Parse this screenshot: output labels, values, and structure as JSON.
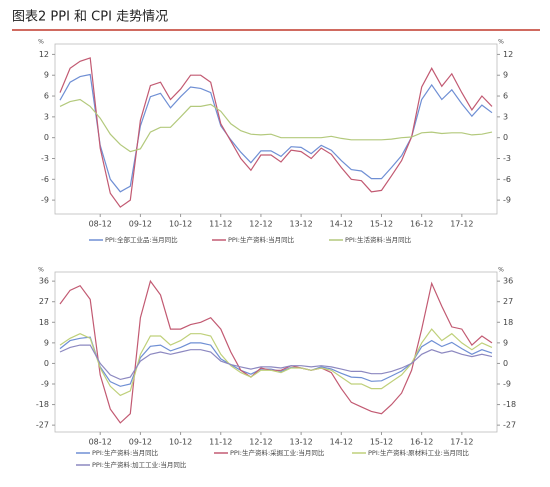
{
  "header": {
    "title": "图表2  PPI 和 CPI 走势情况"
  },
  "chart_data": [
    {
      "type": "line",
      "unit": "%",
      "categories": [
        null,
        null,
        null,
        null,
        "08-12",
        null,
        null,
        null,
        "09-12",
        null,
        null,
        null,
        "10-12",
        null,
        null,
        null,
        "11-12",
        null,
        null,
        null,
        "12-12",
        null,
        null,
        null,
        "13-12",
        null,
        null,
        null,
        "14-12",
        null,
        null,
        null,
        "15-12",
        null,
        null,
        null,
        "16-12",
        null,
        null,
        null,
        "17-12",
        null,
        null,
        null
      ],
      "ylim": [
        -11,
        13.5
      ],
      "yticks": [
        -9,
        -6,
        -3,
        0,
        3,
        6,
        9,
        12
      ],
      "series": [
        {
          "name": "PPI:全部工业品:当月同比",
          "color": "#6f8fd4",
          "values": [
            5.4,
            8.0,
            8.8,
            9.1,
            -1.1,
            -6.0,
            -7.8,
            -7.0,
            1.7,
            5.9,
            6.4,
            4.3,
            5.9,
            7.3,
            7.1,
            6.5,
            1.7,
            -0.3,
            -2.1,
            -3.6,
            -1.9,
            -1.9,
            -2.7,
            -1.3,
            -1.4,
            -2.3,
            -1.1,
            -1.8,
            -3.3,
            -4.6,
            -4.8,
            -5.9,
            -5.9,
            -4.3,
            -2.6,
            0.1,
            5.5,
            7.6,
            5.5,
            6.9,
            4.9,
            3.1,
            4.7,
            3.6
          ]
        },
        {
          "name": "PPI:生产资料:当月同比",
          "color": "#c25a72",
          "values": [
            6.5,
            10,
            11,
            11.5,
            -1.5,
            -8,
            -10,
            -9,
            2.5,
            7.5,
            8,
            5.5,
            7,
            9,
            9,
            8,
            2,
            -0.5,
            -3,
            -4.7,
            -2.5,
            -2.5,
            -3.5,
            -1.8,
            -2,
            -3,
            -1.5,
            -2.4,
            -4.3,
            -6,
            -6.2,
            -7.8,
            -7.6,
            -5.5,
            -3.3,
            0.1,
            7.3,
            10,
            7.4,
            9.2,
            6.5,
            4,
            6,
            4.5
          ]
        },
        {
          "name": "PPI:生活资料:当月同比",
          "color": "#b3c97c",
          "values": [
            4.5,
            5.2,
            5.5,
            4.5,
            2.8,
            0.5,
            -1,
            -2,
            -1.6,
            0.8,
            1.5,
            1.5,
            3,
            4.5,
            4.5,
            4.8,
            3.8,
            2,
            1,
            0.5,
            0.4,
            0.5,
            0,
            0,
            0,
            0,
            0,
            0.2,
            -0.1,
            -0.3,
            -0.3,
            -0.3,
            -0.3,
            -0.2,
            0,
            0.1,
            0.7,
            0.8,
            0.6,
            0.7,
            0.7,
            0.4,
            0.5,
            0.8
          ]
        }
      ]
    },
    {
      "type": "line",
      "unit": "%",
      "categories": [
        null,
        null,
        null,
        null,
        "08-12",
        null,
        null,
        null,
        "09-12",
        null,
        null,
        null,
        "10-12",
        null,
        null,
        null,
        "11-12",
        null,
        null,
        null,
        "12-12",
        null,
        null,
        null,
        "13-12",
        null,
        null,
        null,
        "14-12",
        null,
        null,
        null,
        "15-12",
        null,
        null,
        null,
        "16-12",
        null,
        null,
        null,
        "17-12",
        null,
        null,
        null
      ],
      "ylim": [
        -30,
        40
      ],
      "yticks": [
        -27,
        -18,
        -9,
        0,
        9,
        18,
        27,
        36
      ],
      "series": [
        {
          "name": "PPI:生产资料:当月同比",
          "color": "#6f8fd4",
          "values": [
            6.5,
            10,
            11,
            11.5,
            -1.5,
            -8,
            -10,
            -9,
            2.5,
            7.5,
            8,
            5.5,
            7,
            9,
            9,
            8,
            2,
            -0.5,
            -3,
            -4.7,
            -2.5,
            -2.5,
            -3.5,
            -1.8,
            -2,
            -3,
            -1.5,
            -2.4,
            -4.3,
            -6,
            -6.2,
            -7.8,
            -7.6,
            -5.5,
            -3.3,
            0.1,
            7.3,
            10,
            7.4,
            9.2,
            6.5,
            4,
            6,
            4.5
          ]
        },
        {
          "name": "PPI:生产资料:采掘工业:当月同比",
          "color": "#c25a72",
          "values": [
            26,
            32,
            34,
            28,
            -5,
            -20,
            -26,
            -22,
            20,
            36,
            30,
            15,
            15,
            17,
            18,
            20,
            15,
            5,
            -3,
            -6,
            -2,
            -3,
            -3,
            -1,
            -2,
            -3,
            -2,
            -4,
            -11,
            -17,
            -19,
            -21,
            -22,
            -18,
            -13,
            -3,
            15,
            35,
            25,
            16,
            15,
            8,
            12,
            9
          ]
        },
        {
          "name": "PPI:生产资料:原材料工业:当月同比",
          "color": "#bfd07a",
          "values": [
            8,
            11,
            13,
            11,
            -2,
            -10,
            -14,
            -12,
            4,
            12,
            12,
            8,
            10,
            13,
            13,
            12,
            4,
            -1,
            -4,
            -6,
            -3,
            -3,
            -4,
            -2,
            -2,
            -3,
            -2,
            -3,
            -6,
            -9,
            -9,
            -11,
            -11,
            -8,
            -5,
            0,
            9,
            15,
            10,
            13,
            9,
            6,
            9,
            7
          ]
        },
        {
          "name": "PPI:生产资料:加工工业:当月同比",
          "color": "#8c88c0",
          "values": [
            5,
            7,
            8,
            8,
            0,
            -5,
            -7,
            -6,
            1,
            4,
            5,
            4,
            5,
            6,
            6,
            5,
            1,
            -0.5,
            -1.5,
            -2.5,
            -1.5,
            -1.5,
            -2,
            -1,
            -1,
            -1.5,
            -1,
            -1.5,
            -2.5,
            -3.5,
            -3.5,
            -4.5,
            -4.5,
            -3.5,
            -2,
            0,
            4,
            6,
            4.5,
            5.5,
            4,
            3,
            4,
            3
          ]
        }
      ]
    }
  ]
}
